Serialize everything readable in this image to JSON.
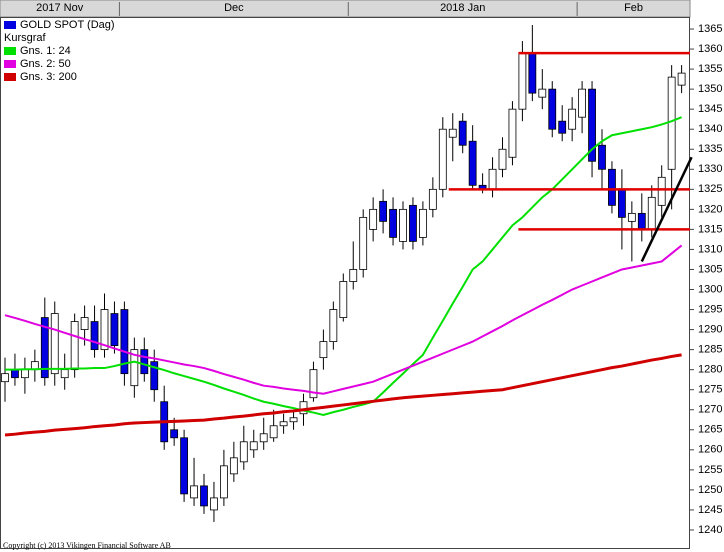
{
  "chart_data": {
    "type": "candlestick",
    "categories": [
      "2017 Nov",
      null,
      null,
      null,
      null,
      null,
      null,
      null,
      null,
      null,
      null,
      null,
      "Dec",
      null,
      null,
      null,
      null,
      null,
      null,
      null,
      null,
      null,
      null,
      null,
      null,
      null,
      null,
      null,
      null,
      null,
      null,
      null,
      null,
      null,
      null,
      "2018 Jan",
      null,
      null,
      null,
      null,
      null,
      null,
      null,
      null,
      null,
      null,
      null,
      null,
      null,
      null,
      null,
      null,
      null,
      null,
      null,
      null,
      null,
      null,
      "Feb",
      null,
      null,
      null,
      null,
      null,
      null,
      null,
      null,
      null,
      null
    ],
    "series": [
      {
        "name": "GOLD SPOT (Dag)",
        "color": "#0000e0",
        "up_color": "#ffffff",
        "open": [
          1277,
          1280,
          1278,
          1280,
          1293,
          1279,
          1278,
          1280,
          1290,
          1292,
          1285,
          1294,
          1295,
          1276,
          1285,
          1282,
          1272,
          1265,
          1263,
          1248,
          1251,
          1245,
          1248,
          1254,
          1257,
          1260,
          1262,
          1263,
          1266,
          1267,
          1269,
          1273,
          1283,
          1287,
          1293,
          1302,
          1305,
          1315,
          1322,
          1320,
          1312,
          1321,
          1313,
          1320,
          1325,
          1338,
          1342,
          1337,
          1326,
          1325,
          1330,
          1333,
          1345,
          1359,
          1348,
          1350,
          1342,
          1340,
          1343,
          1350,
          1336,
          1330,
          1325,
          1317,
          1319,
          1315,
          1321,
          1330,
          1351
        ],
        "high": [
          1283,
          1284,
          1283,
          1285,
          1298,
          1297,
          1284,
          1294,
          1296,
          1296,
          1299,
          1297,
          1297,
          1288,
          1288,
          1285,
          1276,
          1268,
          1265,
          1258,
          1254,
          1252,
          1260,
          1262,
          1266,
          1265,
          1268,
          1270,
          1269,
          1270,
          1274,
          1282,
          1290,
          1297,
          1304,
          1312,
          1320,
          1323,
          1325,
          1323,
          1322,
          1323,
          1322,
          1328,
          1343,
          1344,
          1344,
          1341,
          1329,
          1333,
          1338,
          1347,
          1362,
          1366,
          1355,
          1352,
          1346,
          1348,
          1352,
          1352,
          1340,
          1332,
          1330,
          1322,
          1324,
          1326,
          1331,
          1356,
          1356
        ],
        "low": [
          1272,
          1276,
          1274,
          1277,
          1276,
          1276,
          1275,
          1278,
          1286,
          1283,
          1283,
          1284,
          1276,
          1273,
          1277,
          1272,
          1260,
          1261,
          1247,
          1246,
          1244,
          1242,
          1246,
          1252,
          1255,
          1258,
          1260,
          1262,
          1264,
          1265,
          1266,
          1272,
          1280,
          1285,
          1292,
          1300,
          1303,
          1312,
          1314,
          1311,
          1310,
          1310,
          1311,
          1318,
          1323,
          1332,
          1334,
          1325,
          1324,
          1323,
          1328,
          1331,
          1342,
          1347,
          1345,
          1338,
          1337,
          1337,
          1339,
          1328,
          1325,
          1319,
          1310,
          1307,
          1312,
          1313,
          1318,
          1320,
          1349
        ],
        "close": [
          1279,
          1278,
          1280,
          1282,
          1278,
          1294,
          1280,
          1292,
          1293,
          1285,
          1295,
          1286,
          1279,
          1285,
          1279,
          1275,
          1262,
          1263,
          1249,
          1251,
          1246,
          1248,
          1256,
          1258,
          1262,
          1262,
          1264,
          1266,
          1267,
          1268,
          1272,
          1280,
          1287,
          1295,
          1302,
          1305,
          1318,
          1320,
          1317,
          1313,
          1320,
          1312,
          1320,
          1325,
          1340,
          1340,
          1336,
          1326,
          1325,
          1330,
          1335,
          1345,
          1359,
          1349,
          1350,
          1340,
          1339,
          1345,
          1350,
          1332,
          1330,
          1321,
          1318,
          1319,
          1315,
          1323,
          1328,
          1353,
          1354
        ]
      },
      {
        "name": "Gns. 1: 24",
        "color": "#00e000",
        "values": [
          1280,
          1280,
          1280.1,
          1280.1,
          1280.2,
          1280.2,
          1280.2,
          1280.3,
          1280.3,
          1280.4,
          1280.4,
          1280.9,
          1281.5,
          1282,
          1281.3,
          1280.6,
          1279.9,
          1279.1,
          1278.4,
          1277.7,
          1277,
          1276.2,
          1275.3,
          1274.5,
          1273.7,
          1272.8,
          1272,
          1271.5,
          1270.9,
          1270.4,
          1269.8,
          1269.3,
          1268.7,
          1269.4,
          1270,
          1270.7,
          1271.3,
          1272,
          1274.3,
          1276.7,
          1279,
          1281.4,
          1283.7,
          1288,
          1292.2,
          1296.5,
          1300.7,
          1305,
          1307,
          1310,
          1313,
          1316,
          1318,
          1320.5,
          1323,
          1325,
          1327.5,
          1330,
          1332.5,
          1335,
          1337,
          1338.5,
          1339,
          1339.5,
          1340,
          1340.5,
          1341.2,
          1342,
          1343
        ]
      },
      {
        "name": "Gns. 2: 50",
        "color": "#e000e0",
        "values": [
          1293.6,
          1292.9,
          1292.2,
          1291.4,
          1290.7,
          1290,
          1289.2,
          1288.4,
          1287.6,
          1286.9,
          1286.1,
          1285.3,
          1284.5,
          1283.7,
          1283.2,
          1282.8,
          1282.3,
          1281.8,
          1281.3,
          1280.9,
          1280.4,
          1279.7,
          1278.9,
          1278.2,
          1277.5,
          1276.7,
          1276,
          1275.7,
          1275.3,
          1275,
          1274.7,
          1274.3,
          1274,
          1274.6,
          1275.2,
          1275.8,
          1276.4,
          1277,
          1278,
          1279,
          1280,
          1281,
          1282,
          1283,
          1284,
          1285,
          1286,
          1287,
          1288.3,
          1289.6,
          1290.9,
          1292.3,
          1293.6,
          1294.9,
          1296.2,
          1297.4,
          1298.7,
          1300,
          1301,
          1302,
          1303,
          1304,
          1305,
          1305.5,
          1306,
          1306.5,
          1307,
          1309,
          1311
        ]
      },
      {
        "name": "Gns. 3: 200",
        "color": "#d00000",
        "values": [
          1263.7,
          1263.9,
          1264.2,
          1264.4,
          1264.6,
          1264.9,
          1265.1,
          1265.3,
          1265.5,
          1265.8,
          1266,
          1266.2,
          1266.5,
          1266.7,
          1266.8,
          1266.9,
          1267,
          1267.1,
          1267.2,
          1267.3,
          1267.4,
          1267.7,
          1267.9,
          1268.2,
          1268.4,
          1268.7,
          1269,
          1269.2,
          1269.5,
          1269.7,
          1270,
          1270.3,
          1270.6,
          1270.9,
          1271.2,
          1271.5,
          1271.8,
          1272.1,
          1272.4,
          1272.7,
          1273,
          1273.2,
          1273.4,
          1273.6,
          1273.8,
          1274,
          1274.2,
          1274.4,
          1274.6,
          1274.8,
          1275,
          1275.5,
          1276,
          1276.5,
          1277,
          1277.5,
          1278,
          1278.5,
          1279,
          1279.5,
          1280,
          1280.5,
          1280.9,
          1281.4,
          1281.9,
          1282.4,
          1282.8,
          1283.3,
          1283.7
        ]
      }
    ],
    "legend_subtitle": "Kursgraf",
    "levels": [
      {
        "value": 1359,
        "from": 52,
        "color": "#e00000"
      },
      {
        "value": 1325,
        "from": 45,
        "color": "#e00000"
      },
      {
        "value": 1315,
        "from": 52,
        "color": "#e00000"
      }
    ],
    "trendline": {
      "x": [
        64,
        69
      ],
      "y": [
        1307,
        1333
      ],
      "color": "#000000"
    },
    "ylim": [
      1235.5,
      1367.75
    ],
    "yticks": [
      1240,
      1245,
      1250,
      1255,
      1260,
      1265,
      1270,
      1275,
      1280,
      1285,
      1290,
      1295,
      1300,
      1305,
      1310,
      1315,
      1320,
      1325,
      1330,
      1335,
      1340,
      1345,
      1350,
      1355,
      1360,
      1365
    ],
    "footer": "Copyright (c) 2013 Vikingen Financial Software AB"
  }
}
